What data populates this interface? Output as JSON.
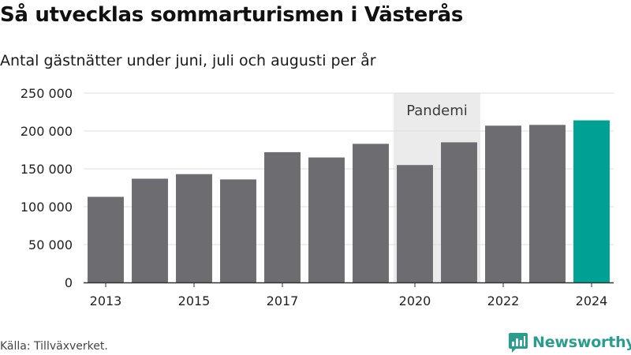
{
  "header": {
    "title": "Så utvecklas sommarturismen i Västerås",
    "subtitle": "Antal gästnätter under juni, juli och augusti per år"
  },
  "footer": {
    "source": "Källa: Tillväxverket.",
    "brand": "Newsworthy",
    "brand_icon": "newsworthy-logo-icon"
  },
  "colors": {
    "bar": "#6d6c71",
    "highlight": "#00a195",
    "band": "#ebebeb",
    "axis": "#333333",
    "grid": "#dcdcdc",
    "brand": "#2a9d8f"
  },
  "chart_data": {
    "type": "bar",
    "categories": [
      "2013",
      "2014",
      "2015",
      "2016",
      "2017",
      "2018",
      "2019",
      "2020",
      "2021",
      "2022",
      "2023",
      "2024"
    ],
    "values": [
      113000,
      137000,
      143000,
      136000,
      172000,
      165000,
      183000,
      155000,
      185000,
      207000,
      208000,
      214000
    ],
    "highlight_category": "2024",
    "x_tick_labels": [
      "2013",
      "2015",
      "2017",
      "2020",
      "2022",
      "2024"
    ],
    "y_ticks": [
      0,
      50000,
      100000,
      150000,
      200000,
      250000
    ],
    "y_tick_labels": [
      "0",
      "50 000",
      "100 000",
      "150 000",
      "200 000",
      "250 000"
    ],
    "ylim": [
      0,
      250000
    ],
    "grid": true,
    "legend": "none",
    "annotation": {
      "label": "Pandemi",
      "from": "2020",
      "to": "2021"
    }
  }
}
